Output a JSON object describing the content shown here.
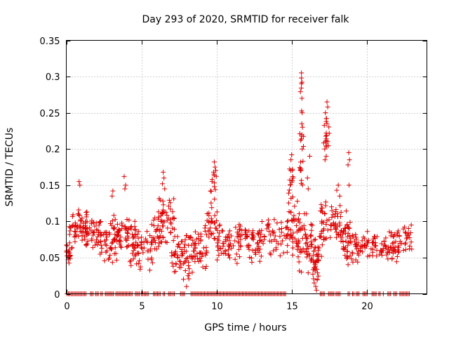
{
  "chart_data": {
    "type": "scatter",
    "title": "Day 293 of 2020, SRMTID for receiver falk",
    "xlabel": "GPS time / hours",
    "ylabel": "SRMTID / TECUs",
    "xlim": [
      0,
      24
    ],
    "ylim": [
      0,
      0.35
    ],
    "xticks": [
      0,
      5,
      10,
      15,
      20
    ],
    "yticks": [
      0,
      0.05,
      0.1,
      0.15,
      0.2,
      0.25,
      0.3,
      0.35
    ],
    "ytick_labels": [
      "0",
      "0.05",
      "0.1",
      "0.15",
      "0.2",
      "0.25",
      "0.3",
      "0.35"
    ],
    "grid": true,
    "marker": "+",
    "color": "#dd0000",
    "zero_ranges": [
      [
        0.05,
        1.35
      ],
      [
        1.6,
        1.85
      ],
      [
        1.95,
        2.15
      ],
      [
        2.3,
        2.4
      ],
      [
        2.6,
        3.15
      ],
      [
        3.3,
        4.45
      ],
      [
        4.6,
        4.9
      ],
      [
        5.0,
        5.45
      ],
      [
        5.8,
        6.3
      ],
      [
        6.45,
        6.6
      ],
      [
        6.8,
        7.0
      ],
      [
        7.1,
        7.25
      ],
      [
        7.6,
        7.95
      ],
      [
        8.3,
        14.65
      ],
      [
        16.9,
        17.2
      ],
      [
        17.45,
        17.85
      ],
      [
        17.95,
        18.3
      ],
      [
        18.75,
        18.85
      ],
      [
        19.05,
        19.15
      ],
      [
        19.3,
        19.55
      ],
      [
        19.75,
        20.1
      ],
      [
        20.35,
        20.65
      ],
      [
        20.8,
        20.9
      ],
      [
        21.1,
        21.15
      ],
      [
        21.4,
        21.65
      ],
      [
        21.8,
        22.0
      ],
      [
        22.2,
        22.9
      ]
    ],
    "clusters": [
      {
        "x": [
          0.0,
          0.3
        ],
        "y": [
          0.04,
          0.07
        ],
        "n": 16
      },
      {
        "x": [
          0.2,
          0.7
        ],
        "y": [
          0.05,
          0.12
        ],
        "n": 22
      },
      {
        "x": [
          0.7,
          1.4
        ],
        "y": [
          0.07,
          0.13
        ],
        "n": 36
      },
      {
        "x": [
          1.3,
          2.3
        ],
        "y": [
          0.06,
          0.11
        ],
        "n": 40
      },
      {
        "x": [
          2.2,
          3.4
        ],
        "y": [
          0.04,
          0.11
        ],
        "n": 44
      },
      {
        "x": [
          3.0,
          4.6
        ],
        "y": [
          0.05,
          0.11
        ],
        "n": 60
      },
      {
        "x": [
          4.2,
          5.8
        ],
        "y": [
          0.03,
          0.1
        ],
        "n": 55
      },
      {
        "x": [
          5.6,
          6.5
        ],
        "y": [
          0.05,
          0.12
        ],
        "n": 30
      },
      {
        "x": [
          6.1,
          7.2
        ],
        "y": [
          0.06,
          0.15
        ],
        "n": 45
      },
      {
        "x": [
          7.0,
          8.6
        ],
        "y": [
          0.02,
          0.09
        ],
        "n": 70
      },
      {
        "x": [
          8.4,
          9.4
        ],
        "y": [
          0.03,
          0.09
        ],
        "n": 35
      },
      {
        "x": [
          9.2,
          10.2
        ],
        "y": [
          0.06,
          0.12
        ],
        "n": 35
      },
      {
        "x": [
          9.6,
          10.0
        ],
        "y": [
          0.12,
          0.18
        ],
        "n": 10
      },
      {
        "x": [
          10.0,
          11.6
        ],
        "y": [
          0.04,
          0.1
        ],
        "n": 55
      },
      {
        "x": [
          11.5,
          13.0
        ],
        "y": [
          0.04,
          0.1
        ],
        "n": 50
      },
      {
        "x": [
          12.8,
          14.8
        ],
        "y": [
          0.05,
          0.11
        ],
        "n": 60
      },
      {
        "x": [
          14.7,
          15.6
        ],
        "y": [
          0.05,
          0.14
        ],
        "n": 40
      },
      {
        "x": [
          14.8,
          15.1
        ],
        "y": [
          0.13,
          0.19
        ],
        "n": 12
      },
      {
        "x": [
          15.5,
          15.8
        ],
        "y": [
          0.13,
          0.31
        ],
        "n": 20
      },
      {
        "x": [
          15.3,
          16.6
        ],
        "y": [
          0.02,
          0.12
        ],
        "n": 60
      },
      {
        "x": [
          16.4,
          16.8
        ],
        "y": [
          0.01,
          0.08
        ],
        "n": 30
      },
      {
        "x": [
          16.8,
          17.4
        ],
        "y": [
          0.04,
          0.13
        ],
        "n": 30
      },
      {
        "x": [
          17.1,
          17.5
        ],
        "y": [
          0.18,
          0.26
        ],
        "n": 14
      },
      {
        "x": [
          17.4,
          18.3
        ],
        "y": [
          0.07,
          0.13
        ],
        "n": 35
      },
      {
        "x": [
          18.2,
          18.9
        ],
        "y": [
          0.04,
          0.12
        ],
        "n": 40
      },
      {
        "x": [
          18.7,
          19.4
        ],
        "y": [
          0.04,
          0.09
        ],
        "n": 25
      },
      {
        "x": [
          19.4,
          20.6
        ],
        "y": [
          0.04,
          0.09
        ],
        "n": 40
      },
      {
        "x": [
          20.6,
          22.0
        ],
        "y": [
          0.04,
          0.09
        ],
        "n": 50
      },
      {
        "x": [
          22.0,
          23.0
        ],
        "y": [
          0.05,
          0.1
        ],
        "n": 35
      }
    ],
    "points": [
      [
        15.65,
        0.305
      ],
      [
        15.65,
        0.298
      ],
      [
        15.68,
        0.27
      ],
      [
        15.7,
        0.25
      ],
      [
        15.72,
        0.23
      ],
      [
        15.6,
        0.212
      ],
      [
        15.7,
        0.2
      ],
      [
        15.75,
        0.183
      ],
      [
        15.62,
        0.17
      ],
      [
        17.35,
        0.265
      ],
      [
        17.4,
        0.258
      ],
      [
        17.25,
        0.25
      ],
      [
        17.3,
        0.242
      ],
      [
        17.35,
        0.235
      ],
      [
        17.3,
        0.222
      ],
      [
        17.4,
        0.21
      ],
      [
        17.2,
        0.2
      ],
      [
        17.3,
        0.19
      ],
      [
        17.22,
        0.185
      ],
      [
        18.8,
        0.195
      ],
      [
        18.85,
        0.185
      ],
      [
        18.75,
        0.178
      ],
      [
        18.82,
        0.15
      ],
      [
        15.0,
        0.192
      ],
      [
        14.95,
        0.185
      ],
      [
        15.05,
        0.172
      ],
      [
        15.1,
        0.16
      ],
      [
        16.2,
        0.19
      ],
      [
        16.05,
        0.16
      ],
      [
        16.1,
        0.145
      ],
      [
        9.85,
        0.182
      ],
      [
        9.9,
        0.175
      ],
      [
        9.8,
        0.168
      ],
      [
        9.7,
        0.155
      ],
      [
        9.85,
        0.148
      ],
      [
        9.6,
        0.142
      ],
      [
        6.45,
        0.168
      ],
      [
        6.5,
        0.16
      ],
      [
        6.4,
        0.152
      ],
      [
        6.55,
        0.145
      ],
      [
        3.85,
        0.162
      ],
      [
        3.95,
        0.15
      ],
      [
        3.9,
        0.145
      ],
      [
        0.85,
        0.155
      ],
      [
        0.9,
        0.15
      ],
      [
        3.1,
        0.142
      ],
      [
        3.05,
        0.135
      ],
      [
        18.1,
        0.15
      ],
      [
        18.0,
        0.143
      ],
      [
        18.2,
        0.135
      ],
      [
        16.6,
        0.01
      ],
      [
        16.65,
        0.005
      ],
      [
        16.5,
        0.015
      ],
      [
        16.7,
        0.02
      ],
      [
        8.0,
        0.01
      ],
      [
        7.8,
        0.02
      ],
      [
        8.1,
        0.025
      ]
    ]
  }
}
